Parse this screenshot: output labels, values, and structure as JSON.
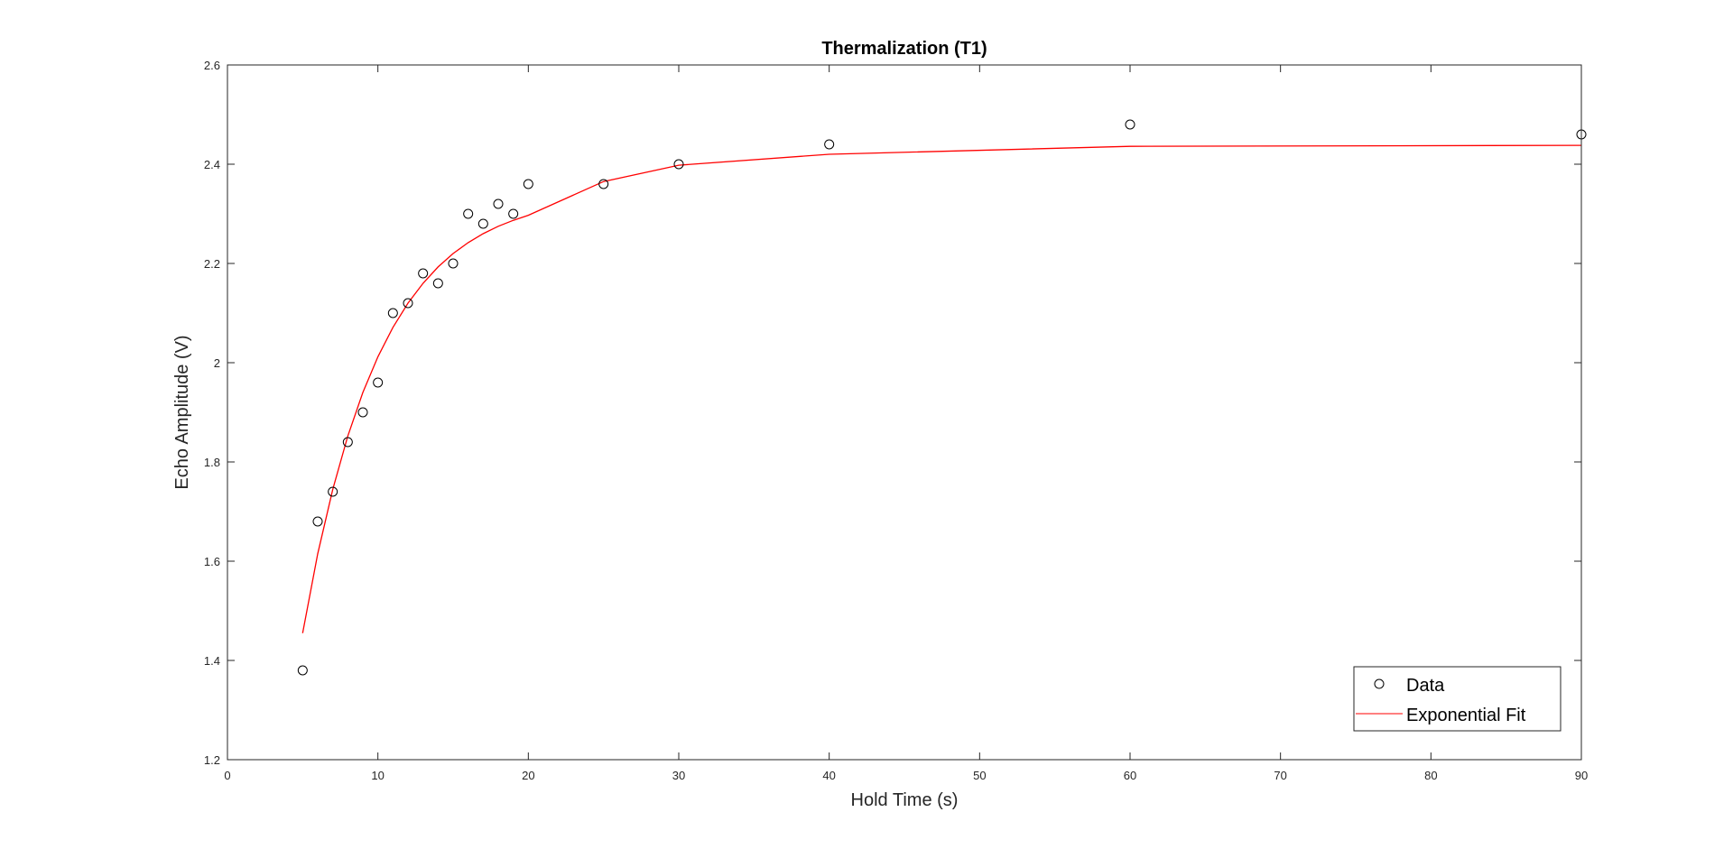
{
  "chart_data": {
    "type": "scatter",
    "title": "Thermalization (T1)",
    "xlabel": "Hold Time (s)",
    "ylabel": "Echo Amplitude (V)",
    "xlim": [
      0,
      90
    ],
    "ylim": [
      1.2,
      2.6
    ],
    "xticks": [
      0,
      10,
      20,
      30,
      40,
      50,
      60,
      70,
      80,
      90
    ],
    "xtick_labels": [
      "0",
      "10",
      "20",
      "30",
      "40",
      "50",
      "60",
      "70",
      "80",
      "90"
    ],
    "yticks": [
      1.2,
      1.4,
      1.6,
      1.8,
      2.0,
      2.2,
      2.4,
      2.6
    ],
    "ytick_labels": [
      "1.2",
      "1.4",
      "1.6",
      "1.8",
      "2",
      "2.2",
      "2.4",
      "2.6"
    ],
    "grid": false,
    "legend_position": "bottom-right",
    "series": [
      {
        "name": "Data",
        "kind": "marker",
        "marker": "circle",
        "color": "#000000",
        "x": [
          5,
          6,
          7,
          8,
          9,
          10,
          11,
          12,
          13,
          14,
          15,
          16,
          17,
          18,
          19,
          20,
          25,
          30,
          40,
          60,
          90
        ],
        "y": [
          1.38,
          1.68,
          1.74,
          1.84,
          1.9,
          1.96,
          2.1,
          2.12,
          2.18,
          2.16,
          2.2,
          2.3,
          2.28,
          2.32,
          2.3,
          2.36,
          2.36,
          2.4,
          2.44,
          2.48,
          2.46
        ]
      },
      {
        "name": "Exponential Fit",
        "kind": "line",
        "color": "#ff0000",
        "x": [
          5,
          6,
          7,
          8,
          9,
          10,
          11,
          12,
          13,
          14,
          15,
          16,
          17,
          18,
          19,
          20,
          25,
          30,
          40,
          60,
          90
        ],
        "y": [
          1.455,
          1.615,
          1.745,
          1.852,
          1.94,
          2.012,
          2.071,
          2.12,
          2.16,
          2.193,
          2.22,
          2.242,
          2.26,
          2.275,
          2.287,
          2.297,
          2.365,
          2.398,
          2.42,
          2.436,
          2.438
        ]
      }
    ]
  }
}
